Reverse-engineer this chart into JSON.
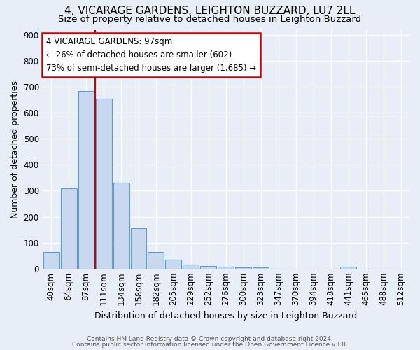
{
  "title": "4, VICARAGE GARDENS, LEIGHTON BUZZARD, LU7 2LL",
  "subtitle": "Size of property relative to detached houses in Leighton Buzzard",
  "xlabel": "Distribution of detached houses by size in Leighton Buzzard",
  "ylabel": "Number of detached properties",
  "footnote1": "Contains HM Land Registry data © Crown copyright and database right 2024.",
  "footnote2": "Contains public sector information licensed under the Open Government Licence v3.0.",
  "bar_labels": [
    "40sqm",
    "64sqm",
    "87sqm",
    "111sqm",
    "134sqm",
    "158sqm",
    "182sqm",
    "205sqm",
    "229sqm",
    "252sqm",
    "276sqm",
    "300sqm",
    "323sqm",
    "347sqm",
    "370sqm",
    "394sqm",
    "418sqm",
    "441sqm",
    "465sqm",
    "488sqm",
    "512sqm"
  ],
  "bar_values": [
    63,
    310,
    685,
    655,
    330,
    155,
    65,
    35,
    15,
    10,
    7,
    5,
    4,
    0,
    0,
    0,
    0,
    8,
    0,
    0,
    0
  ],
  "bar_color": "#c8d8ee",
  "bar_edge_color": "#5a9fd4",
  "annotation_text": "4 VICARAGE GARDENS: 97sqm\n← 26% of detached houses are smaller (602)\n73% of semi-detached houses are larger (1,685) →",
  "annotation_box_color": "#ffffff",
  "annotation_box_edge_color": "#cc0000",
  "property_line_color": "#cc0000",
  "ylim": [
    0,
    920
  ],
  "yticks": [
    0,
    100,
    200,
    300,
    400,
    500,
    600,
    700,
    800,
    900
  ],
  "background_color": "#e8eef8",
  "grid_color": "#ffffff",
  "title_fontsize": 11,
  "subtitle_fontsize": 9.5,
  "axis_label_fontsize": 9,
  "tick_fontsize": 8.5,
  "footnote_fontsize": 6.5
}
